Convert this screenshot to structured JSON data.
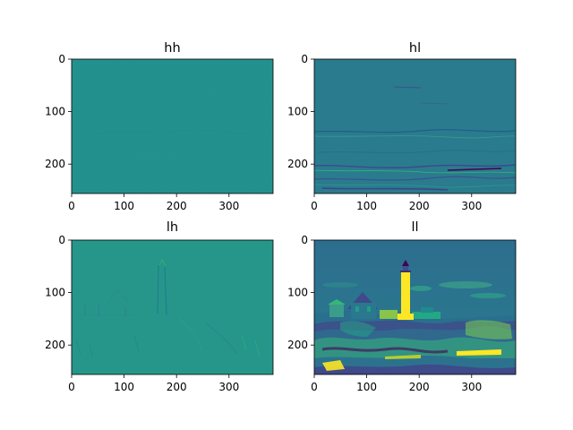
{
  "chart_data": [
    {
      "type": "heatmap",
      "title": "hh",
      "xlim": [
        0,
        384
      ],
      "ylim": [
        256,
        0
      ],
      "x_ticks": [
        0,
        100,
        200,
        300
      ],
      "y_ticks": [
        0,
        100,
        200
      ],
      "colormap": "viridis",
      "description_of_image": "nearly uniform teal (diagonal detail coefficients)",
      "dominant_color": "#21908d"
    },
    {
      "type": "heatmap",
      "title": "hl",
      "xlim": [
        0,
        384
      ],
      "ylim": [
        256,
        0
      ],
      "x_ticks": [
        0,
        100,
        200,
        300
      ],
      "y_ticks": [
        0,
        100,
        200
      ],
      "colormap": "viridis",
      "description_of_image": "mostly uniform blue-teal with horizontal edge streaks",
      "dominant_color": "#2a7b8e"
    },
    {
      "type": "heatmap",
      "title": "lh",
      "xlim": [
        0,
        384
      ],
      "ylim": [
        256,
        0
      ],
      "x_ticks": [
        0,
        100,
        200,
        300
      ],
      "y_ticks": [
        0,
        100,
        200
      ],
      "colormap": "viridis",
      "description_of_image": "uniform teal with faint vertical edge outlines of lighthouse and houses",
      "dominant_color": "#26968a"
    },
    {
      "type": "heatmap",
      "title": "ll",
      "xlim": [
        0,
        384
      ],
      "ylim": [
        256,
        0
      ],
      "x_ticks": [
        0,
        100,
        200,
        300
      ],
      "y_ticks": [
        0,
        100,
        200
      ],
      "colormap": "viridis",
      "description_of_image": "approximation coefficients: lighthouse on rocky coast under sky",
      "dominant_color": "#2c7a8d"
    }
  ],
  "colors": {
    "viridis_dark": "#440154",
    "viridis_blue": "#3b528b",
    "viridis_teal": "#21908d",
    "viridis_green": "#5ec962",
    "viridis_yellow": "#fde725"
  }
}
